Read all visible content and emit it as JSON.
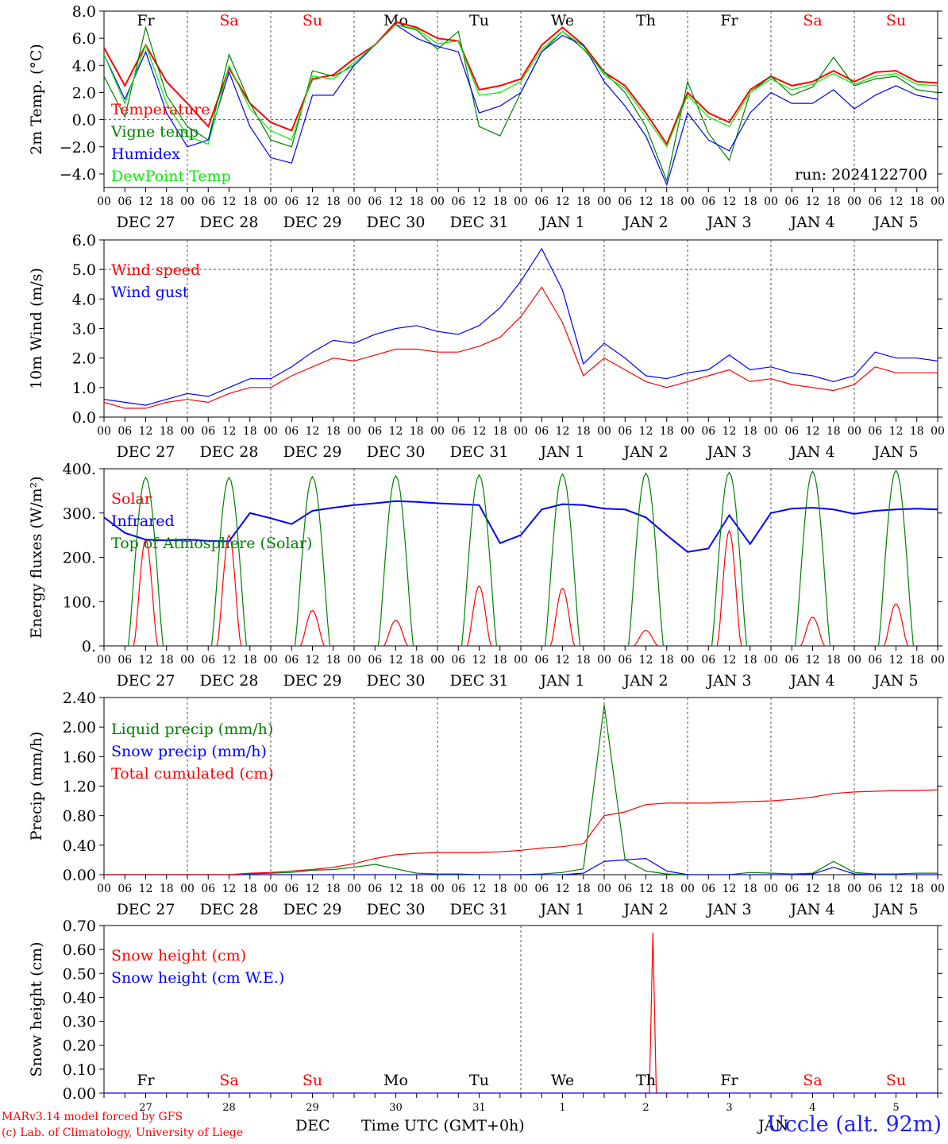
{
  "x_axis": {
    "hour_ticks": [
      "00",
      "06",
      "12",
      "18"
    ],
    "date_labels": [
      "DEC 27",
      "DEC 28",
      "DEC 29",
      "DEC 30",
      "DEC 31",
      "JAN  1",
      "JAN  2",
      "JAN  3",
      "JAN  4",
      "JAN  5"
    ],
    "day_names": [
      "Fr",
      "Sa",
      "Su",
      "Mo",
      "Tu",
      "We",
      "Th",
      "Fr",
      "Sa",
      "Su"
    ],
    "weekend_flags": [
      false,
      true,
      true,
      false,
      false,
      false,
      false,
      false,
      true,
      true
    ],
    "day_numbers": [
      "27",
      "28",
      "29",
      "30",
      "31",
      "1",
      "2",
      "3",
      "4",
      "5"
    ],
    "month_labels": [
      "DEC",
      "JAN"
    ],
    "axis_title": "Time UTC (GMT+0h)"
  },
  "footer": {
    "model_line": "MARv3.14 model forced by GFS",
    "credit_line": "(c) Lab. of Climatology, University of Liege",
    "station": "Uccle (alt. 92m)"
  },
  "colors": {
    "red": "#ff0000",
    "green": "#008000",
    "blue": "#0000ff",
    "lightgreen": "#00ee00",
    "grid": "#000000"
  },
  "chart_data": [
    {
      "type": "line",
      "ylabel": "2m Temp. (°C)",
      "ylim": [
        -5,
        8
      ],
      "yticks": [
        "8.0",
        "6.0",
        "4.0",
        "2.0",
        "0.0",
        "−2.0",
        "−4.0"
      ],
      "ytick_values": [
        8,
        6,
        4,
        2,
        0,
        -2,
        -4
      ],
      "run_label": "run: 2024122700",
      "legend_position": "left",
      "x_hours": [
        0,
        6,
        12,
        18,
        24,
        30,
        36,
        42,
        48,
        54,
        60,
        66,
        72,
        78,
        84,
        90,
        96,
        102,
        108,
        114,
        120,
        126,
        132,
        138,
        144,
        150,
        156,
        162,
        168,
        174,
        180,
        186,
        192,
        198,
        204,
        210,
        216,
        222,
        228,
        234,
        240
      ],
      "series": [
        {
          "name": "Temperature",
          "color": "#ff0000",
          "values": [
            5.3,
            2.5,
            5.5,
            2.8,
            1.2,
            -0.5,
            3.8,
            1.2,
            -0.2,
            -0.8,
            3.0,
            3.3,
            4.5,
            5.5,
            7.2,
            6.8,
            6.0,
            5.8,
            2.2,
            2.5,
            3.0,
            5.5,
            6.8,
            5.5,
            3.5,
            2.5,
            0.5,
            -1.8,
            2.0,
            0.5,
            -0.2,
            2.2,
            3.2,
            2.5,
            2.8,
            3.6,
            2.8,
            3.5,
            3.6,
            2.8,
            2.7
          ]
        },
        {
          "name": "Vigne temp",
          "color": "#008000",
          "values": [
            3.2,
            0.2,
            6.8,
            1.8,
            -0.5,
            -1.5,
            4.8,
            1.2,
            -1.5,
            -2.0,
            3.6,
            3.2,
            4.0,
            5.5,
            7.0,
            6.6,
            5.2,
            6.5,
            -0.5,
            -1.2,
            2.0,
            5.0,
            6.5,
            5.2,
            3.5,
            2.0,
            -0.5,
            -4.5,
            2.8,
            -1.0,
            -3.0,
            2.0,
            3.2,
            1.8,
            2.4,
            4.6,
            2.5,
            3.0,
            3.2,
            2.2,
            2.0
          ]
        },
        {
          "name": "Humidex",
          "color": "#0000ff",
          "values": [
            4.8,
            1.5,
            5.0,
            0.5,
            -2.0,
            -1.5,
            3.5,
            -0.5,
            -2.8,
            -3.2,
            1.8,
            1.8,
            4.0,
            5.5,
            7.0,
            6.0,
            5.4,
            5.0,
            0.5,
            1.0,
            2.0,
            5.0,
            6.2,
            5.5,
            2.8,
            1.0,
            -1.2,
            -4.8,
            0.5,
            -1.5,
            -2.3,
            0.5,
            2.0,
            1.2,
            1.2,
            2.2,
            0.8,
            1.8,
            2.5,
            1.8,
            1.5
          ]
        },
        {
          "name": "DewPoint Temp",
          "color": "#00ee00",
          "values": [
            4.8,
            1.2,
            5.5,
            1.2,
            -1.2,
            -1.8,
            4.0,
            0.8,
            -0.8,
            -1.5,
            3.2,
            3.0,
            4.2,
            5.5,
            7.0,
            6.7,
            5.6,
            5.8,
            1.8,
            2.0,
            2.8,
            5.2,
            6.5,
            5.4,
            3.3,
            2.3,
            0.2,
            -2.0,
            1.8,
            0.2,
            -0.5,
            2.0,
            3.0,
            2.2,
            2.6,
            3.4,
            2.6,
            3.2,
            3.4,
            2.6,
            2.5
          ]
        }
      ]
    },
    {
      "type": "line",
      "ylabel": "10m Wind (m/s)",
      "ylim": [
        0,
        6
      ],
      "yticks": [
        "6.0",
        "5.0",
        "4.0",
        "3.0",
        "2.0",
        "1.0",
        "0.0"
      ],
      "ytick_values": [
        6,
        5,
        4,
        3,
        2,
        1,
        0
      ],
      "dashed_reference": 5,
      "legend_position": "left",
      "x_hours": [
        0,
        6,
        12,
        18,
        24,
        30,
        36,
        42,
        48,
        54,
        60,
        66,
        72,
        78,
        84,
        90,
        96,
        102,
        108,
        114,
        120,
        126,
        132,
        138,
        144,
        150,
        156,
        162,
        168,
        174,
        180,
        186,
        192,
        198,
        204,
        210,
        216,
        222,
        228,
        234,
        240
      ],
      "series": [
        {
          "name": "Wind speed",
          "color": "#ff0000",
          "values": [
            0.5,
            0.3,
            0.3,
            0.5,
            0.6,
            0.5,
            0.8,
            1.0,
            1.0,
            1.4,
            1.7,
            2.0,
            1.9,
            2.1,
            2.3,
            2.3,
            2.2,
            2.2,
            2.4,
            2.7,
            3.4,
            4.4,
            3.2,
            1.4,
            2.0,
            1.6,
            1.2,
            1.0,
            1.2,
            1.4,
            1.6,
            1.2,
            1.3,
            1.1,
            1.0,
            0.9,
            1.1,
            1.7,
            1.5,
            1.5,
            1.5
          ]
        },
        {
          "name": "Wind gust",
          "color": "#0000ff",
          "values": [
            0.6,
            0.5,
            0.4,
            0.6,
            0.8,
            0.7,
            1.0,
            1.3,
            1.3,
            1.7,
            2.2,
            2.6,
            2.5,
            2.8,
            3.0,
            3.1,
            2.9,
            2.8,
            3.1,
            3.7,
            4.6,
            5.7,
            4.3,
            1.8,
            2.5,
            2.0,
            1.4,
            1.3,
            1.5,
            1.6,
            2.1,
            1.6,
            1.7,
            1.5,
            1.4,
            1.2,
            1.4,
            2.2,
            2.0,
            2.0,
            1.9
          ]
        }
      ]
    },
    {
      "type": "line",
      "ylabel": "Energy fluxes (W/m²)",
      "ylim": [
        0,
        400
      ],
      "yticks": [
        "400.",
        "300.",
        "200.",
        "100.",
        "0."
      ],
      "ytick_values": [
        400,
        300,
        200,
        100,
        0
      ],
      "legend_position": "left",
      "series": [
        {
          "name": "Solar",
          "color": "#ff0000",
          "daily_peaks": [
            240,
            250,
            80,
            58,
            135,
            130,
            35,
            260,
            65,
            95
          ]
        },
        {
          "name": "Infrared",
          "color": "#0000ff",
          "x_hours": [
            0,
            6,
            12,
            18,
            24,
            30,
            36,
            42,
            48,
            54,
            60,
            66,
            72,
            78,
            84,
            90,
            96,
            102,
            108,
            114,
            120,
            126,
            132,
            138,
            144,
            150,
            156,
            162,
            168,
            174,
            180,
            186,
            192,
            198,
            204,
            210,
            216,
            222,
            228,
            234,
            240
          ],
          "values": [
            290,
            255,
            240,
            238,
            240,
            237,
            236,
            300,
            288,
            275,
            305,
            312,
            318,
            322,
            327,
            325,
            322,
            320,
            318,
            232,
            250,
            308,
            320,
            318,
            310,
            308,
            290,
            250,
            212,
            220,
            295,
            230,
            300,
            310,
            312,
            308,
            298,
            305,
            308,
            310,
            308
          ]
        },
        {
          "name": "Top of Atmosphere (Solar)",
          "color": "#008000",
          "daily_peaks": [
            380,
            380,
            382,
            384,
            386,
            388,
            390,
            392,
            394,
            396
          ]
        }
      ]
    },
    {
      "type": "line",
      "ylabel": "Precip (mm/h)",
      "ylim": [
        0,
        2.4
      ],
      "yticks": [
        "2.40",
        "2.00",
        "1.60",
        "1.20",
        "0.80",
        "0.40",
        "0.00"
      ],
      "ytick_values": [
        2.4,
        2.0,
        1.6,
        1.2,
        0.8,
        0.4,
        0.0
      ],
      "legend_position": "left",
      "x_hours": [
        0,
        6,
        12,
        18,
        24,
        30,
        36,
        42,
        48,
        54,
        60,
        66,
        72,
        78,
        84,
        90,
        96,
        102,
        108,
        114,
        120,
        126,
        132,
        138,
        144,
        150,
        156,
        162,
        168,
        174,
        180,
        186,
        192,
        198,
        204,
        210,
        216,
        222,
        228,
        234,
        240
      ],
      "series": [
        {
          "name": "Liquid precip (mm/h)",
          "color": "#008000",
          "values": [
            0,
            0,
            0,
            0,
            0,
            0,
            0,
            0.01,
            0.02,
            0.03,
            0.06,
            0.07,
            0.1,
            0.14,
            0.08,
            0.02,
            0.01,
            0.01,
            0,
            0,
            0,
            0.01,
            0.03,
            0.08,
            2.3,
            0.2,
            0.05,
            0.01,
            0,
            0,
            0,
            0.03,
            0.02,
            0.01,
            0.02,
            0.18,
            0.03,
            0.01,
            0.01,
            0.02,
            0.02
          ]
        },
        {
          "name": "Snow precip (mm/h)",
          "color": "#0000ff",
          "values": [
            0,
            0,
            0,
            0,
            0,
            0,
            0,
            0,
            0,
            0,
            0,
            0,
            0,
            0,
            0,
            0,
            0,
            0,
            0,
            0,
            0,
            0,
            0,
            0.02,
            0.18,
            0.2,
            0.22,
            0.05,
            0,
            0,
            0,
            0,
            0,
            0,
            0.01,
            0.1,
            0.01,
            0,
            0,
            0,
            0
          ]
        },
        {
          "name": "Total cumulated (cm)",
          "color": "#ff0000",
          "values": [
            0,
            0,
            0,
            0,
            0,
            0,
            0,
            0.02,
            0.03,
            0.05,
            0.07,
            0.1,
            0.15,
            0.22,
            0.27,
            0.29,
            0.3,
            0.3,
            0.3,
            0.31,
            0.33,
            0.36,
            0.38,
            0.42,
            0.8,
            0.85,
            0.95,
            0.97,
            0.97,
            0.97,
            0.98,
            0.99,
            1.0,
            1.02,
            1.05,
            1.1,
            1.12,
            1.13,
            1.14,
            1.14,
            1.15
          ]
        }
      ]
    },
    {
      "type": "line",
      "ylabel": "Snow height (cm)",
      "ylim": [
        0,
        0.7
      ],
      "yticks": [
        "0.70",
        "0.60",
        "0.50",
        "0.40",
        "0.30",
        "0.20",
        "0.10",
        "0.00"
      ],
      "ytick_values": [
        0.7,
        0.6,
        0.5,
        0.4,
        0.3,
        0.2,
        0.1,
        0
      ],
      "legend_position": "left",
      "x_hours": [
        0,
        157,
        158,
        159,
        240
      ],
      "series": [
        {
          "name": "Snow height (cm)",
          "color": "#ff0000",
          "values": [
            0,
            0,
            0.67,
            0,
            0
          ]
        },
        {
          "name": "Snow height (cm W.E.)",
          "color": "#0000ff",
          "values": [
            0,
            0,
            0,
            0,
            0
          ]
        }
      ]
    }
  ]
}
